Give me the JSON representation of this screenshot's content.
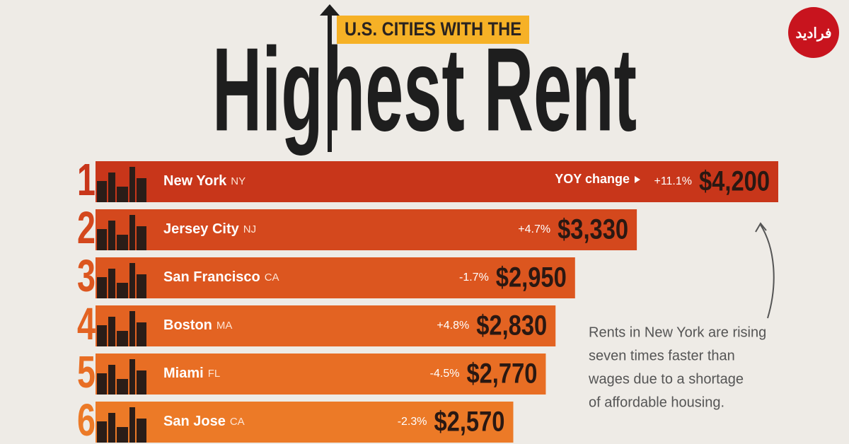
{
  "chart_data": {
    "type": "bar",
    "orientation": "horizontal",
    "kicker": "U.S. CITIES WITH THE",
    "title": "Highest Rent",
    "ranks": [
      1,
      2,
      3,
      4,
      5,
      6
    ],
    "categories": [
      "New York",
      "Jersey City",
      "San Francisco",
      "Boston",
      "Miami",
      "San Jose"
    ],
    "states": [
      "NY",
      "NJ",
      "CA",
      "MA",
      "FL",
      "CA"
    ],
    "values": [
      4200,
      3330,
      2950,
      2830,
      2770,
      2570
    ],
    "value_labels": [
      "$4,200",
      "$3,330",
      "$2,950",
      "$2,830",
      "$2,770",
      "$2,570"
    ],
    "yoy_heading": "YOY change",
    "yoy_change": [
      11.1,
      4.7,
      -1.7,
      4.8,
      -4.5,
      -2.3
    ],
    "yoy_labels": [
      "+11.1%",
      "+4.7%",
      "-1.7%",
      "+4.8%",
      "-4.5%",
      "-2.3%"
    ],
    "colors": [
      "#c8361a",
      "#d4481d",
      "#dc561f",
      "#e36322",
      "#e86e24",
      "#ec7a27"
    ],
    "annotation": [
      "Rents in New York are rising",
      "seven times faster than",
      "wages due to a shortage",
      "of affordable housing."
    ],
    "watermark": "فرادید"
  }
}
